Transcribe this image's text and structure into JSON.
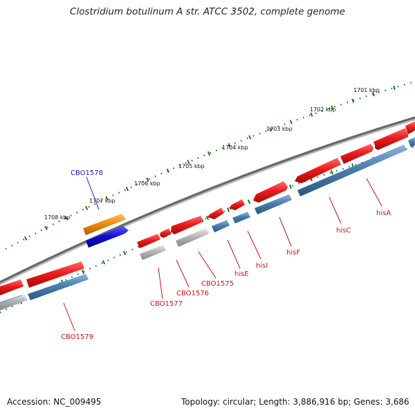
{
  "title": "Clostridium botulinum A str. ATCC 3502, complete genome",
  "footer": {
    "accession": "Accession: NC_009495",
    "stats": "Topology: circular; Length: 3,886,916 bp; Genes: 3,686"
  },
  "ruler_labels": [
    "1701 kbp",
    "1702 kbp",
    "1703 kbp",
    "1704 kbp",
    "1705 kbp",
    "1706 kbp",
    "1707 kbp",
    "1708 kbp"
  ],
  "gene_labels": [
    "hisA",
    "hisC",
    "hisF",
    "hisI",
    "hisE",
    "CBO1575",
    "CBO1576",
    "CBO1577",
    "CBO1578",
    "CBO1579"
  ],
  "colors": {
    "gene_forward": "#ee1c1c",
    "gene_reverse": "#e81a1a",
    "cds": "#4a7eb0",
    "pseudo": "#b5b5b5",
    "highlight_gene": "#f08c0a",
    "highlight_cds": "#1212dd",
    "backbone": "#777777",
    "tick": "#228b22",
    "label_red": "#cc1111",
    "label_blue": "#1a1acc"
  }
}
